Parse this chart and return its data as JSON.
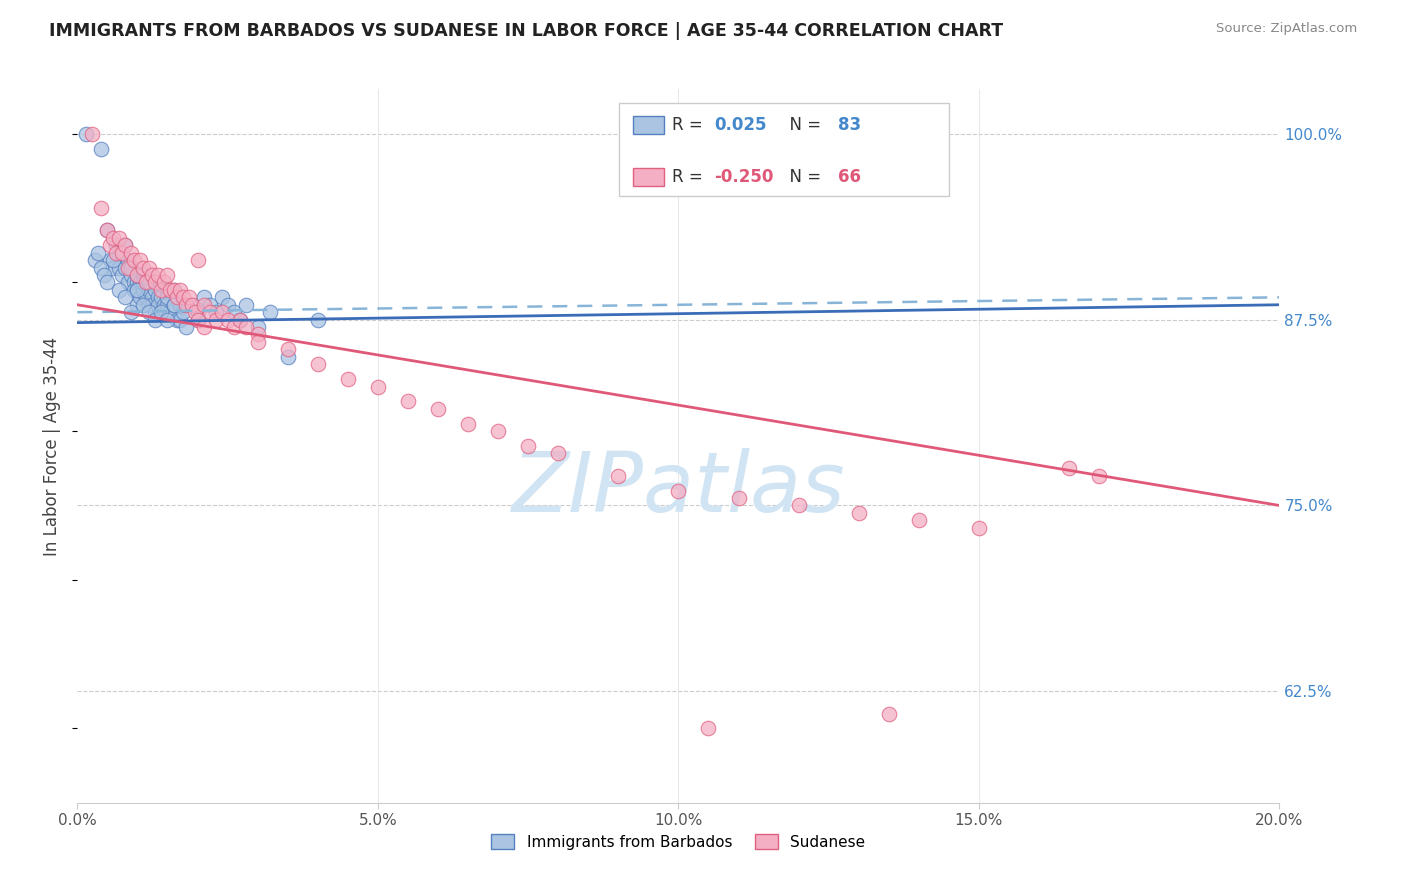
{
  "title": "IMMIGRANTS FROM BARBADOS VS SUDANESE IN LABOR FORCE | AGE 35-44 CORRELATION CHART",
  "source": "Source: ZipAtlas.com",
  "xlabel_ticks": [
    "0.0%",
    "5.0%",
    "10.0%",
    "15.0%",
    "20.0%"
  ],
  "xlabel_vals": [
    0.0,
    5.0,
    10.0,
    15.0,
    20.0
  ],
  "ylabel": "In Labor Force | Age 35-44",
  "ylabel_ticks_right": [
    "100.0%",
    "87.5%",
    "75.0%",
    "62.5%"
  ],
  "ylabel_vals_right": [
    100.0,
    87.5,
    75.0,
    62.5
  ],
  "xlim": [
    0.0,
    20.0
  ],
  "ylim": [
    55.0,
    103.0
  ],
  "blue_color": "#aac4e2",
  "pink_color": "#f4afc4",
  "blue_edge_color": "#5580c0",
  "pink_edge_color": "#e06080",
  "blue_line_color": "#3b6cb7",
  "pink_line_color": "#e05878",
  "blue_dash_color": "#88b4d8",
  "watermark": "ZIPatlas",
  "watermark_color": "#d0e4f4",
  "blue_x": [
    0.15,
    0.4,
    0.5,
    0.55,
    0.6,
    0.65,
    0.7,
    0.7,
    0.75,
    0.8,
    0.8,
    0.85,
    0.85,
    0.9,
    0.9,
    0.95,
    0.95,
    1.0,
    1.0,
    1.0,
    1.0,
    1.05,
    1.05,
    1.1,
    1.1,
    1.1,
    1.15,
    1.15,
    1.2,
    1.2,
    1.2,
    1.25,
    1.25,
    1.3,
    1.3,
    1.35,
    1.35,
    1.4,
    1.4,
    1.45,
    1.5,
    1.5,
    1.5,
    1.55,
    1.6,
    1.6,
    1.65,
    1.7,
    1.7,
    1.75,
    1.8,
    1.8,
    1.9,
    2.0,
    2.0,
    2.1,
    2.2,
    2.3,
    2.4,
    2.5,
    2.6,
    2.7,
    2.8,
    3.0,
    3.2,
    3.5,
    4.0,
    0.3,
    0.35,
    0.4,
    0.45,
    0.5,
    0.6,
    0.7,
    0.8,
    0.9,
    1.0,
    1.1,
    1.2,
    1.3,
    1.4,
    1.5,
    1.6
  ],
  "blue_y": [
    100.0,
    99.0,
    93.5,
    91.5,
    91.0,
    92.5,
    91.0,
    92.0,
    90.5,
    91.0,
    92.5,
    90.0,
    91.5,
    90.5,
    91.0,
    90.0,
    89.5,
    90.0,
    89.5,
    88.5,
    90.5,
    90.0,
    89.0,
    90.5,
    89.5,
    90.0,
    89.0,
    90.0,
    89.5,
    88.5,
    90.0,
    89.0,
    88.5,
    89.5,
    88.0,
    89.0,
    88.5,
    88.0,
    89.0,
    88.5,
    89.5,
    88.5,
    89.0,
    88.0,
    88.5,
    89.5,
    87.5,
    88.5,
    87.5,
    88.0,
    88.5,
    87.0,
    88.5,
    88.0,
    87.5,
    89.0,
    88.5,
    88.0,
    89.0,
    88.5,
    88.0,
    87.5,
    88.5,
    87.0,
    88.0,
    85.0,
    87.5,
    91.5,
    92.0,
    91.0,
    90.5,
    90.0,
    91.5,
    89.5,
    89.0,
    88.0,
    89.5,
    88.5,
    88.0,
    87.5,
    88.0,
    87.5,
    88.5
  ],
  "pink_x": [
    0.25,
    0.4,
    0.5,
    0.55,
    0.6,
    0.65,
    0.7,
    0.75,
    0.8,
    0.85,
    0.9,
    0.95,
    1.0,
    1.05,
    1.1,
    1.15,
    1.2,
    1.25,
    1.3,
    1.35,
    1.4,
    1.45,
    1.5,
    1.55,
    1.6,
    1.65,
    1.7,
    1.75,
    1.8,
    1.85,
    1.9,
    1.95,
    2.0,
    2.0,
    2.1,
    2.1,
    2.2,
    2.3,
    2.4,
    2.5,
    2.6,
    2.7,
    2.8,
    3.0,
    3.0,
    3.5,
    4.0,
    4.5,
    5.0,
    5.5,
    6.0,
    6.5,
    7.0,
    7.5,
    8.0,
    9.0,
    10.0,
    11.0,
    12.0,
    13.0,
    14.0,
    15.0,
    16.5,
    17.0,
    10.5,
    13.5
  ],
  "pink_y": [
    100.0,
    95.0,
    93.5,
    92.5,
    93.0,
    92.0,
    93.0,
    92.0,
    92.5,
    91.0,
    92.0,
    91.5,
    90.5,
    91.5,
    91.0,
    90.0,
    91.0,
    90.5,
    90.0,
    90.5,
    89.5,
    90.0,
    90.5,
    89.5,
    89.5,
    89.0,
    89.5,
    89.0,
    88.5,
    89.0,
    88.5,
    88.0,
    91.5,
    87.5,
    88.5,
    87.0,
    88.0,
    87.5,
    88.0,
    87.5,
    87.0,
    87.5,
    87.0,
    86.5,
    86.0,
    85.5,
    84.5,
    83.5,
    83.0,
    82.0,
    81.5,
    80.5,
    80.0,
    79.0,
    78.5,
    77.0,
    76.0,
    75.5,
    75.0,
    74.5,
    74.0,
    73.5,
    77.5,
    77.0,
    60.0,
    61.0
  ]
}
